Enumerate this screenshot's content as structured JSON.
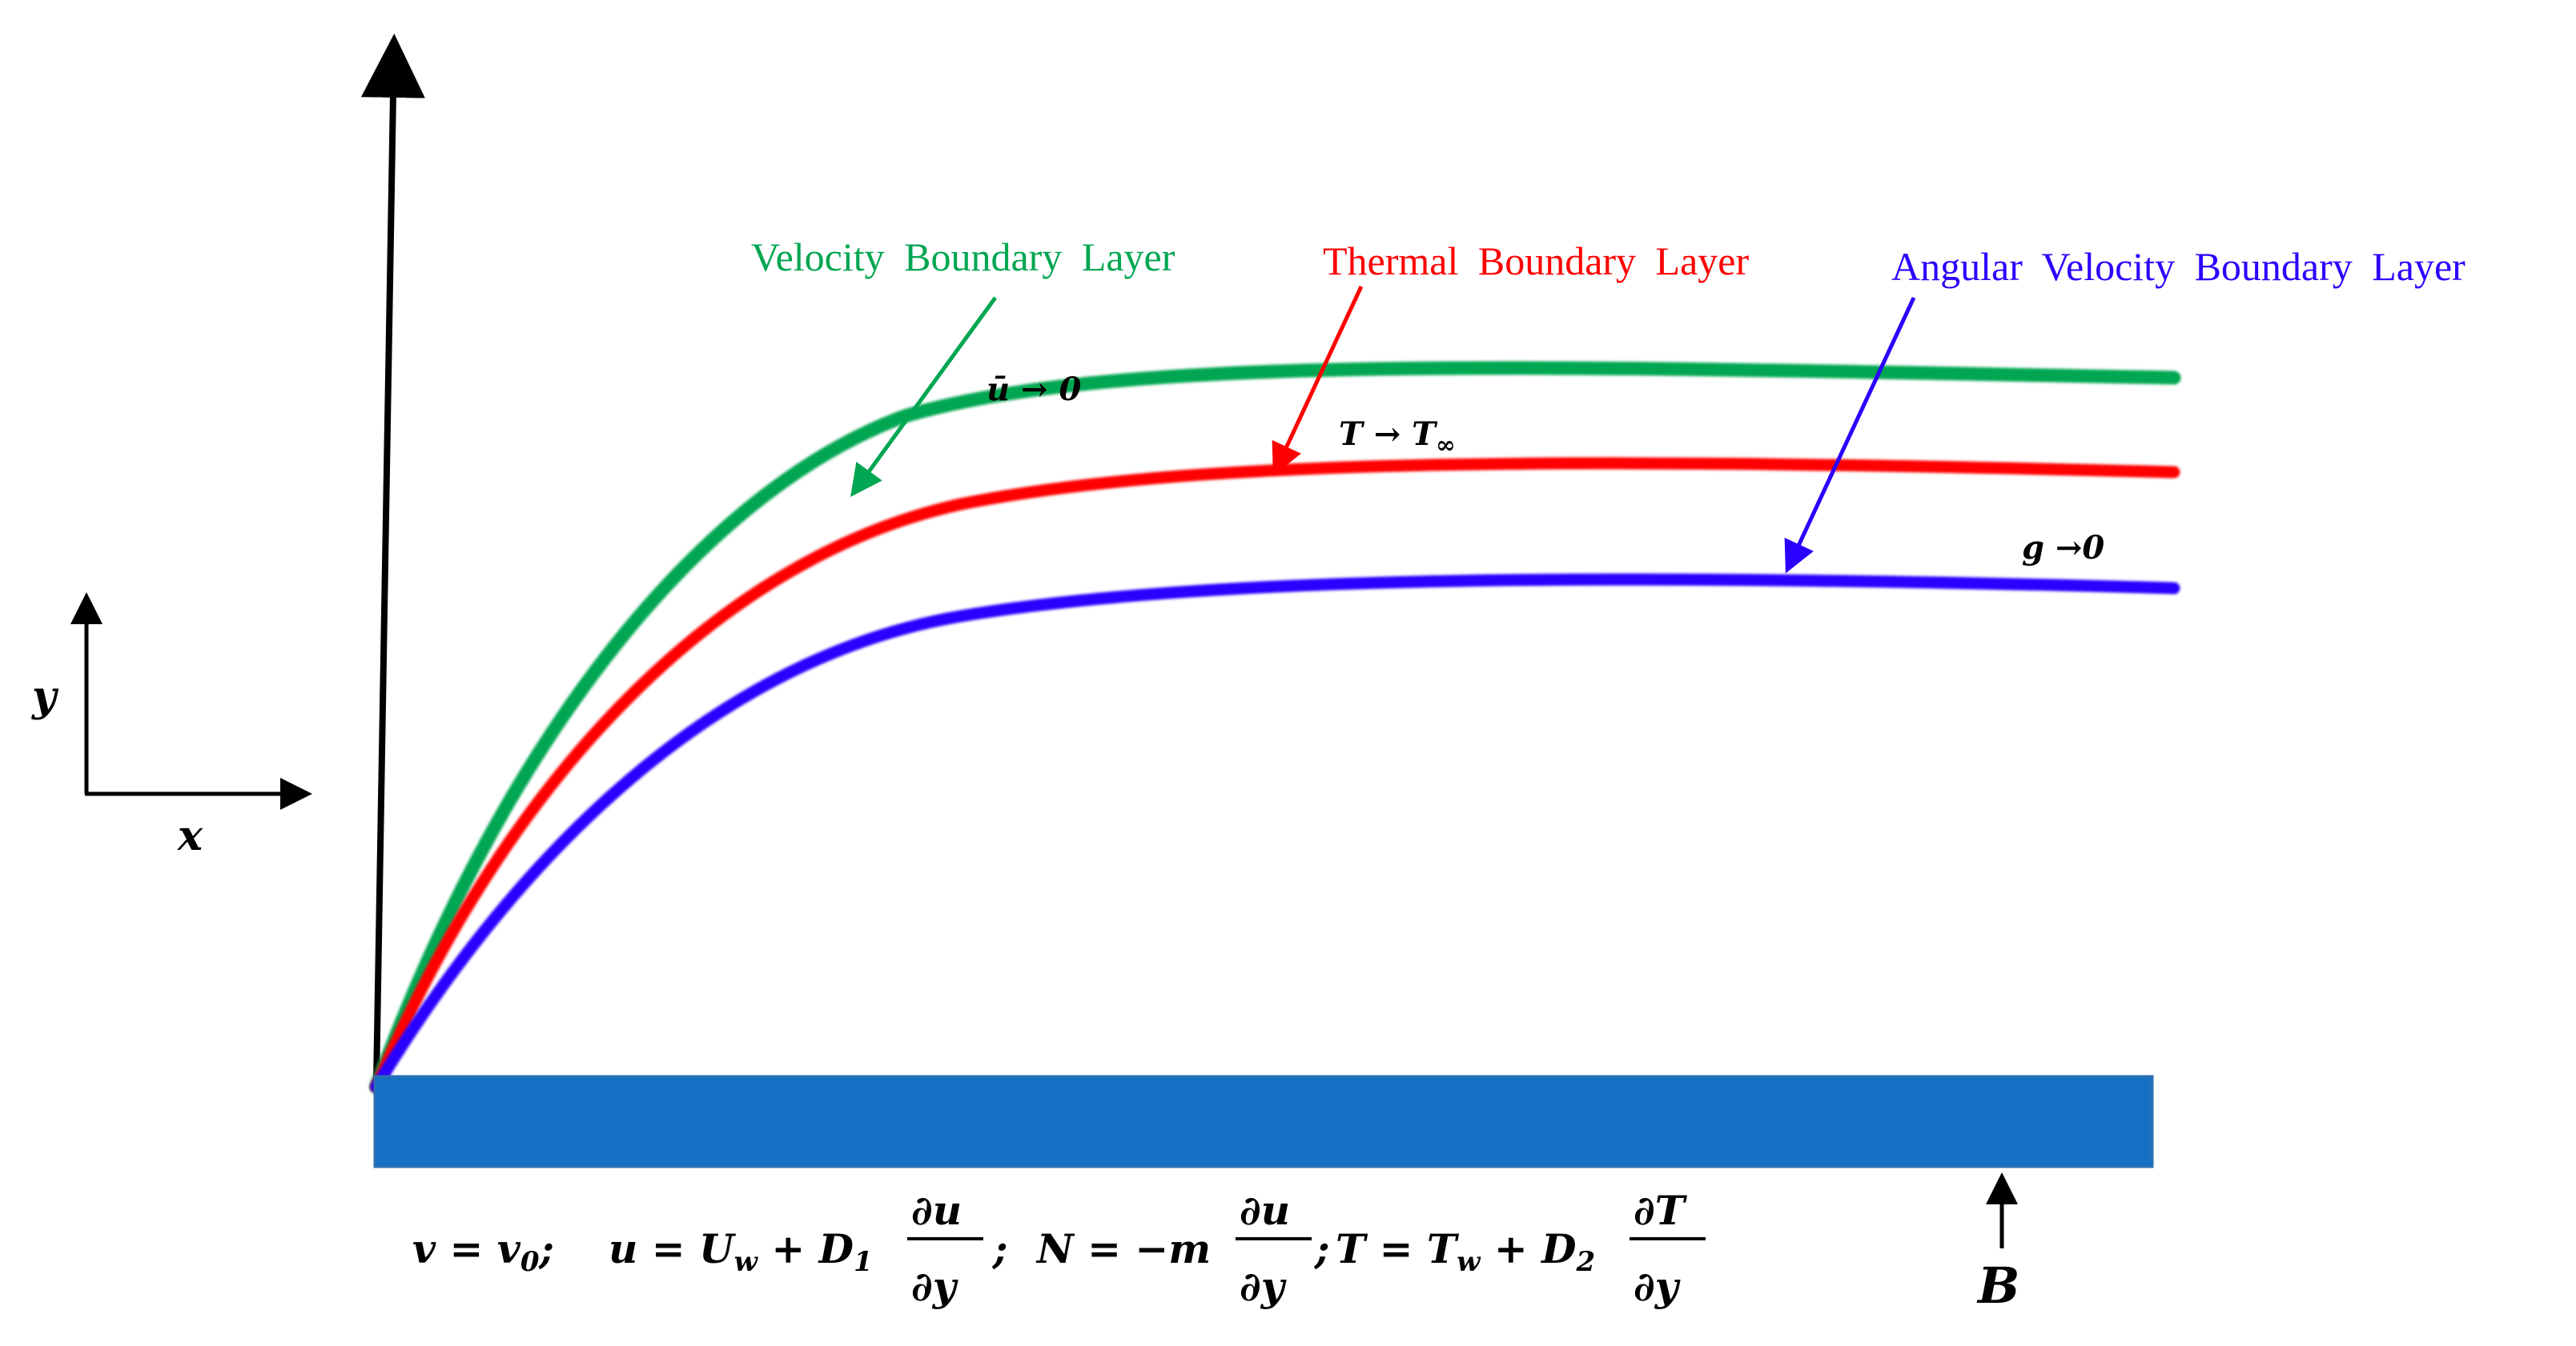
{
  "colors": {
    "velocity": "#00a651",
    "thermal": "#ff0000",
    "angular": "#2b00ff",
    "plate": "#1570c4",
    "plate_border": "#2d6fb2",
    "axis": "#000000"
  },
  "axes": {
    "x_label": "x",
    "y_label": "y"
  },
  "layers": {
    "velocity": {
      "label": "Velocity  Boundary  Layer",
      "condition": "ū → 0"
    },
    "thermal": {
      "label": "Thermal  Boundary  Layer",
      "condition_main": "T → T",
      "condition_sub": "∞"
    },
    "angular": {
      "label": "Angular  Velocity  Boundary  Layer",
      "condition": "g →0"
    }
  },
  "boundary_conditions": {
    "bc1_main": "v = v",
    "bc1_sub": "0",
    "bc1_end": ";",
    "bc2_left": "u = U",
    "bc2_sub_w": "w",
    "bc2_plus": " + D",
    "bc2_sub_1": "1",
    "frac1_num": "∂u",
    "frac1_den": "∂y",
    "bc2_end": ";",
    "bc3_left": "N = −m",
    "frac2_num": "∂u",
    "frac2_den": "∂y",
    "bc3_end": ";",
    "bc4_left": "T = T",
    "bc4_sub_w": "w",
    "bc4_plus": " + D",
    "bc4_sub_2": "2",
    "frac3_num": "∂T",
    "frac3_den": "∂y"
  },
  "plate_label": "B"
}
